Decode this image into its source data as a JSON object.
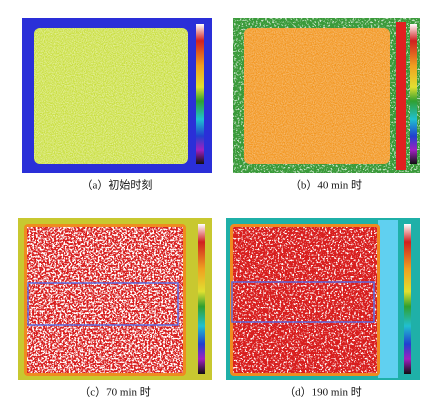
{
  "figure": {
    "panels": [
      {
        "caption": "（a）初始时刻"
      },
      {
        "caption": "（b）40 min 时"
      },
      {
        "caption": "（c）70 min 时"
      },
      {
        "caption": "（d）190 min 时"
      }
    ]
  }
}
